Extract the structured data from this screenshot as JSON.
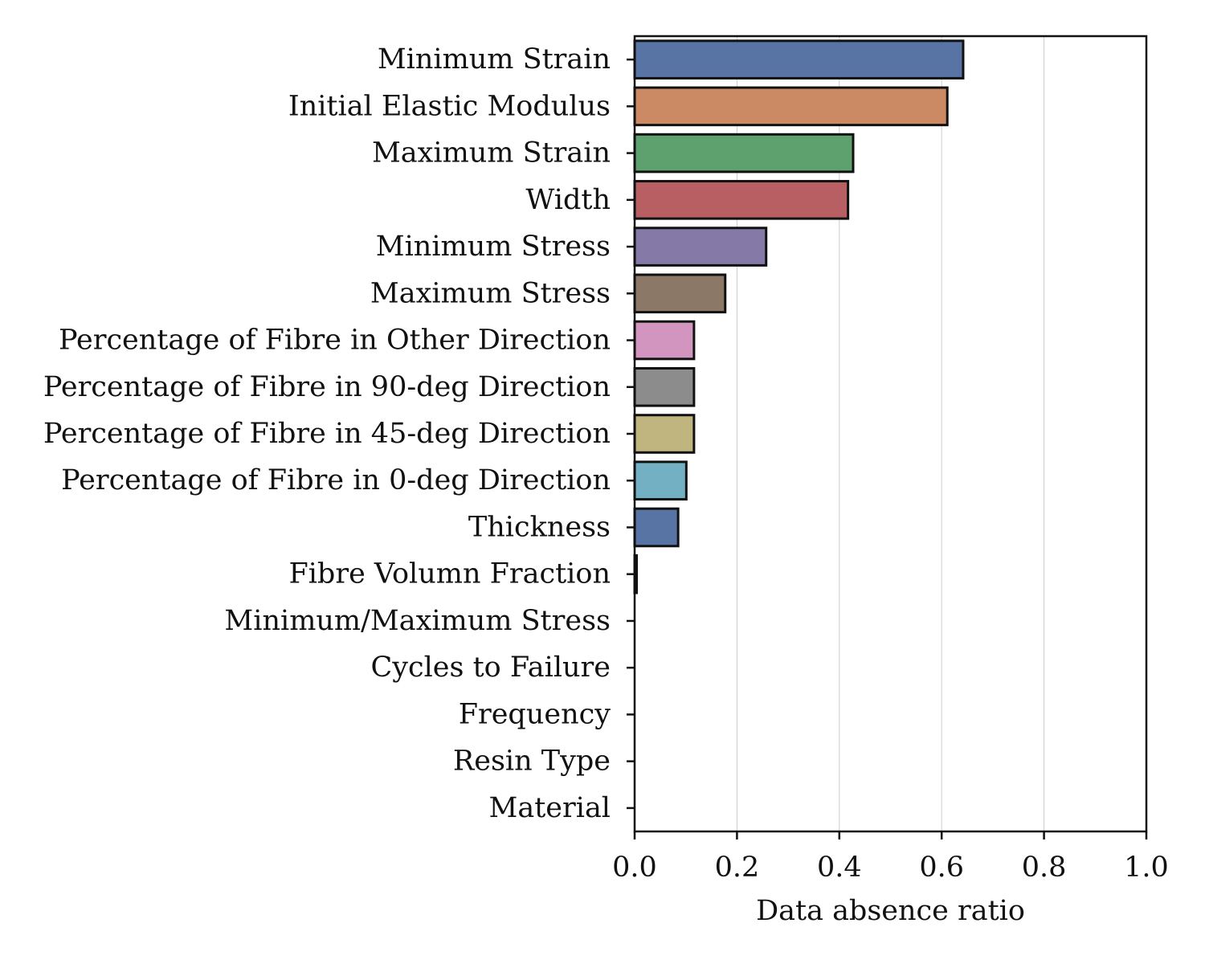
{
  "chart_data": {
    "type": "bar",
    "orientation": "horizontal",
    "categories": [
      "Minimum Strain",
      "Initial Elastic Modulus",
      "Maximum Strain",
      "Width",
      "Minimum Stress",
      "Maximum Stress",
      "Percentage of Fibre in Other Direction",
      "Percentage of Fibre in 90-deg Direction",
      "Percentage of Fibre in 45-deg Direction",
      "Percentage of Fibre in 0-deg Direction",
      "Thickness",
      "Fibre Volumn Fraction",
      "Minimum/Maximum Stress",
      "Cycles to Failure",
      "Frequency",
      "Resin Type",
      "Material"
    ],
    "values": [
      0.642,
      0.611,
      0.427,
      0.417,
      0.257,
      0.177,
      0.116,
      0.116,
      0.116,
      0.101,
      0.085,
      0.004,
      0.0,
      0.0,
      0.0,
      0.0,
      0.0
    ],
    "colors": [
      "#5874a5",
      "#cc8a64",
      "#5fa06f",
      "#b75f63",
      "#8579a8",
      "#8c7866",
      "#d195bf",
      "#8c8c8c",
      "#c0b47f",
      "#73b0c3",
      "#5874a5",
      "#cc8a64",
      "#5fa06f",
      "#b75f63",
      "#8579a8",
      "#8c7866",
      "#d195bf"
    ],
    "xlabel": "Data absence ratio",
    "ylabel": "",
    "xlim": [
      0,
      1.0
    ],
    "xticks": [
      "0.0",
      "0.2",
      "0.4",
      "0.6",
      "0.8",
      "1.0"
    ],
    "grid": "vertical-x",
    "edgecolor": "#111111"
  }
}
